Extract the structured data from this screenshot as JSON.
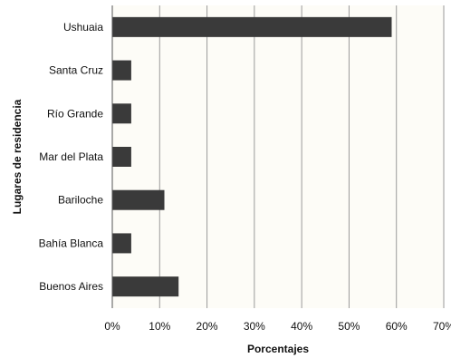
{
  "chart_data": {
    "type": "bar",
    "orientation": "horizontal",
    "categories": [
      "Ushuaia",
      "Santa Cruz",
      "Río Grande",
      "Mar del Plata",
      "Bariloche",
      "Bahía Blanca",
      "Buenos Aires"
    ],
    "values": [
      59,
      4,
      4,
      4,
      11,
      4,
      14
    ],
    "xlabel": "Porcentajes",
    "ylabel": "Lugares de residencia",
    "xlim": [
      0,
      70
    ],
    "x_ticks": [
      "0%",
      "10%",
      "20%",
      "30%",
      "40%",
      "50%",
      "60%",
      "70%"
    ],
    "grid": "vertical",
    "bar_color": "#3a3a3a",
    "grid_color": "#9a9a9a",
    "plot_background": "#fdfcf7"
  }
}
